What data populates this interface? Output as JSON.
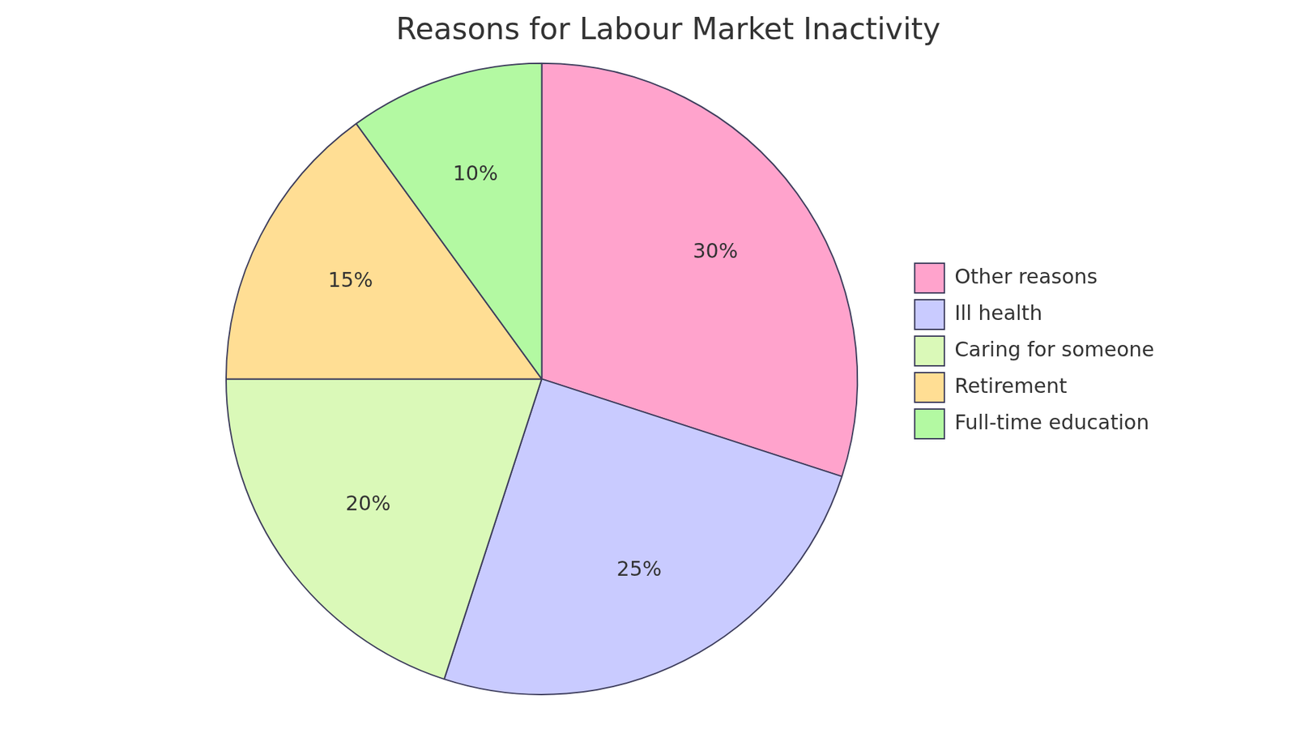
{
  "chart_data": {
    "type": "pie",
    "title": "Reasons for Labour Market Inactivity",
    "categories": [
      "Other reasons",
      "Ill health",
      "Caring for someone",
      "Retirement",
      "Full-time education"
    ],
    "values": [
      30,
      25,
      20,
      15,
      10
    ],
    "value_labels": [
      "30%",
      "25%",
      "20%",
      "15%",
      "10%"
    ],
    "colors": [
      "#FFA3CC",
      "#C9CBFF",
      "#DAF9B8",
      "#FFDE94",
      "#B3F9A2"
    ],
    "legend": "right",
    "data_labels": true
  }
}
